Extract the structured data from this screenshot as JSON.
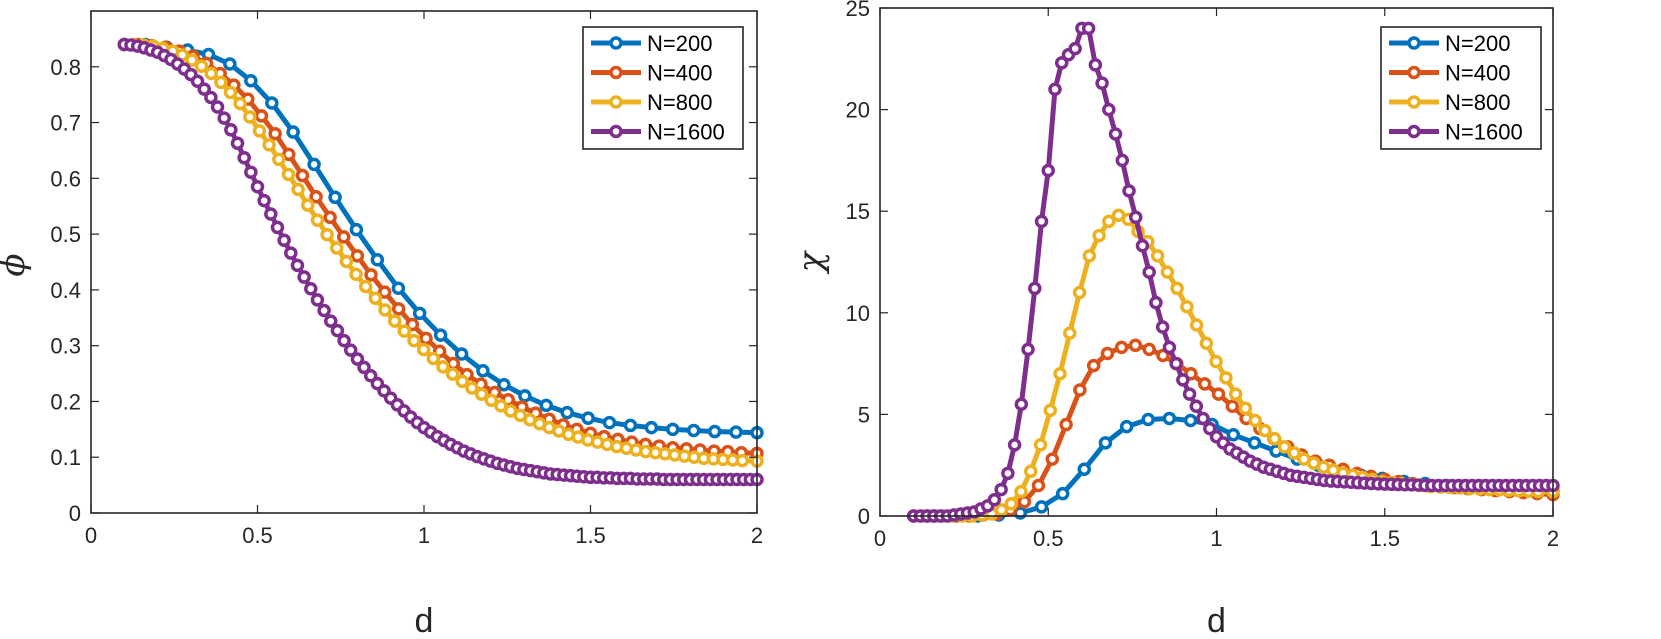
{
  "charts": [
    {
      "type": "line",
      "title": "",
      "xlabel": "d",
      "ylabel": "ϕ",
      "xlim": [
        0,
        2
      ],
      "ylim": [
        0,
        0.9
      ],
      "xticks": [
        0,
        0.5,
        1,
        1.5,
        2
      ],
      "xtick_labels": [
        "0",
        "0.5",
        "1",
        "1.5",
        "2"
      ],
      "yticks": [
        0,
        0.1,
        0.2,
        0.3,
        0.4,
        0.5,
        0.6,
        0.7,
        0.8
      ],
      "ytick_labels": [
        "0",
        "0.1",
        "0.2",
        "0.3",
        "0.4",
        "0.5",
        "0.6",
        "0.7",
        "0.8"
      ],
      "legend_position": "top-right",
      "series": [
        {
          "name": "N=200",
          "color": "#0072BD",
          "x": [
            0.1,
            0.163,
            0.227,
            0.29,
            0.353,
            0.417,
            0.48,
            0.543,
            0.607,
            0.67,
            0.733,
            0.797,
            0.86,
            0.923,
            0.987,
            1.05,
            1.113,
            1.177,
            1.24,
            1.303,
            1.367,
            1.43,
            1.493,
            1.557,
            1.62,
            1.683,
            1.747,
            1.81,
            1.873,
            1.937,
            2.0
          ],
          "y": [
            0.84,
            0.84,
            0.835,
            0.83,
            0.822,
            0.805,
            0.775,
            0.735,
            0.683,
            0.625,
            0.566,
            0.508,
            0.454,
            0.403,
            0.358,
            0.319,
            0.285,
            0.255,
            0.23,
            0.21,
            0.193,
            0.18,
            0.17,
            0.162,
            0.157,
            0.153,
            0.15,
            0.148,
            0.146,
            0.145,
            0.144
          ]
        },
        {
          "name": "N=400",
          "color": "#D95319",
          "x": [
            0.1,
            0.141,
            0.182,
            0.224,
            0.265,
            0.306,
            0.347,
            0.388,
            0.429,
            0.471,
            0.512,
            0.553,
            0.594,
            0.635,
            0.676,
            0.718,
            0.759,
            0.8,
            0.841,
            0.882,
            0.924,
            0.965,
            1.006,
            1.047,
            1.088,
            1.129,
            1.171,
            1.212,
            1.253,
            1.294,
            1.335,
            1.376,
            1.418,
            1.459,
            1.5,
            1.541,
            1.582,
            1.624,
            1.665,
            1.706,
            1.747,
            1.788,
            1.829,
            1.871,
            1.912,
            1.953,
            2.0
          ],
          "y": [
            0.84,
            0.84,
            0.838,
            0.835,
            0.828,
            0.819,
            0.806,
            0.788,
            0.767,
            0.742,
            0.712,
            0.68,
            0.643,
            0.605,
            0.567,
            0.53,
            0.495,
            0.461,
            0.427,
            0.396,
            0.366,
            0.338,
            0.313,
            0.29,
            0.268,
            0.248,
            0.231,
            0.216,
            0.203,
            0.19,
            0.179,
            0.168,
            0.158,
            0.15,
            0.143,
            0.137,
            0.132,
            0.127,
            0.123,
            0.12,
            0.117,
            0.115,
            0.113,
            0.111,
            0.11,
            0.108,
            0.107
          ]
        },
        {
          "name": "N=800",
          "color": "#EDB120",
          "x": [
            0.1,
            0.129,
            0.158,
            0.187,
            0.216,
            0.245,
            0.274,
            0.303,
            0.332,
            0.361,
            0.39,
            0.419,
            0.448,
            0.477,
            0.506,
            0.535,
            0.564,
            0.593,
            0.622,
            0.651,
            0.68,
            0.709,
            0.738,
            0.767,
            0.796,
            0.825,
            0.854,
            0.883,
            0.912,
            0.941,
            0.97,
            0.999,
            1.028,
            1.057,
            1.086,
            1.115,
            1.144,
            1.173,
            1.202,
            1.231,
            1.26,
            1.289,
            1.318,
            1.347,
            1.376,
            1.405,
            1.434,
            1.463,
            1.492,
            1.521,
            1.55,
            1.579,
            1.608,
            1.637,
            1.666,
            1.695,
            1.724,
            1.753,
            1.782,
            1.811,
            1.84,
            1.869,
            1.898,
            1.927,
            1.956,
            2.0
          ],
          "y": [
            0.84,
            0.84,
            0.839,
            0.837,
            0.833,
            0.828,
            0.821,
            0.812,
            0.801,
            0.788,
            0.772,
            0.754,
            0.734,
            0.71,
            0.685,
            0.66,
            0.634,
            0.607,
            0.58,
            0.552,
            0.525,
            0.499,
            0.475,
            0.451,
            0.428,
            0.406,
            0.385,
            0.364,
            0.344,
            0.326,
            0.309,
            0.293,
            0.277,
            0.262,
            0.249,
            0.236,
            0.224,
            0.213,
            0.202,
            0.192,
            0.183,
            0.175,
            0.167,
            0.16,
            0.153,
            0.147,
            0.141,
            0.136,
            0.131,
            0.127,
            0.123,
            0.119,
            0.116,
            0.113,
            0.11,
            0.108,
            0.106,
            0.104,
            0.102,
            0.1,
            0.098,
            0.097,
            0.096,
            0.095,
            0.094,
            0.093
          ]
        },
        {
          "name": "N=1600",
          "color": "#7E2F8E",
          "x": [
            0.1,
            0.12,
            0.14,
            0.16,
            0.18,
            0.2,
            0.22,
            0.24,
            0.26,
            0.28,
            0.3,
            0.32,
            0.34,
            0.36,
            0.38,
            0.4,
            0.42,
            0.44,
            0.46,
            0.48,
            0.5,
            0.52,
            0.54,
            0.56,
            0.58,
            0.6,
            0.62,
            0.64,
            0.66,
            0.68,
            0.7,
            0.72,
            0.74,
            0.76,
            0.78,
            0.8,
            0.82,
            0.84,
            0.86,
            0.88,
            0.9,
            0.92,
            0.94,
            0.96,
            0.98,
            1.0,
            1.02,
            1.04,
            1.06,
            1.08,
            1.1,
            1.12,
            1.14,
            1.16,
            1.18,
            1.2,
            1.22,
            1.24,
            1.26,
            1.28,
            1.3,
            1.32,
            1.34,
            1.36,
            1.38,
            1.4,
            1.42,
            1.44,
            1.46,
            1.48,
            1.5,
            1.52,
            1.54,
            1.56,
            1.58,
            1.6,
            1.62,
            1.64,
            1.66,
            1.68,
            1.7,
            1.72,
            1.74,
            1.76,
            1.78,
            1.8,
            1.82,
            1.84,
            1.86,
            1.88,
            1.9,
            1.92,
            1.94,
            1.96,
            1.98,
            2.0
          ],
          "y": [
            0.84,
            0.839,
            0.837,
            0.834,
            0.83,
            0.826,
            0.82,
            0.813,
            0.805,
            0.796,
            0.786,
            0.774,
            0.76,
            0.745,
            0.728,
            0.708,
            0.687,
            0.663,
            0.637,
            0.611,
            0.585,
            0.56,
            0.536,
            0.512,
            0.489,
            0.466,
            0.444,
            0.423,
            0.402,
            0.382,
            0.363,
            0.344,
            0.327,
            0.309,
            0.292,
            0.276,
            0.261,
            0.246,
            0.232,
            0.219,
            0.206,
            0.194,
            0.183,
            0.172,
            0.162,
            0.153,
            0.145,
            0.137,
            0.13,
            0.123,
            0.117,
            0.111,
            0.106,
            0.101,
            0.097,
            0.093,
            0.089,
            0.086,
            0.083,
            0.08,
            0.078,
            0.076,
            0.074,
            0.072,
            0.07,
            0.069,
            0.068,
            0.067,
            0.066,
            0.065,
            0.064,
            0.064,
            0.063,
            0.063,
            0.062,
            0.062,
            0.062,
            0.061,
            0.061,
            0.061,
            0.061,
            0.06,
            0.06,
            0.06,
            0.06,
            0.06,
            0.06,
            0.06,
            0.06,
            0.06,
            0.06,
            0.06,
            0.06,
            0.06,
            0.06,
            0.06
          ]
        }
      ]
    },
    {
      "type": "line",
      "title": "",
      "xlabel": "d",
      "ylabel": "χ",
      "xlim": [
        0,
        2
      ],
      "ylim": [
        0,
        25
      ],
      "xticks": [
        0,
        0.5,
        1,
        1.5,
        2
      ],
      "xtick_labels": [
        "0",
        "0.5",
        "1",
        "1.5",
        "2"
      ],
      "yticks": [
        0,
        5,
        10,
        15,
        20,
        25
      ],
      "ytick_labels": [
        "0",
        "5",
        "10",
        "15",
        "20",
        "25"
      ],
      "legend_position": "top-right",
      "series": [
        {
          "name": "N=200",
          "color": "#0072BD",
          "x": [
            0.1,
            0.163,
            0.227,
            0.29,
            0.353,
            0.417,
            0.48,
            0.543,
            0.607,
            0.67,
            0.733,
            0.797,
            0.86,
            0.923,
            0.987,
            1.05,
            1.113,
            1.177,
            1.24,
            1.303,
            1.367,
            1.43,
            1.493,
            1.557,
            1.62,
            1.683,
            1.747,
            1.81,
            1.873,
            1.937,
            2.0
          ],
          "y": [
            0.0,
            0.0,
            0.0,
            0.0,
            0.05,
            0.15,
            0.45,
            1.1,
            2.3,
            3.6,
            4.4,
            4.75,
            4.8,
            4.7,
            4.5,
            4.0,
            3.6,
            3.2,
            2.8,
            2.5,
            2.2,
            2.0,
            1.85,
            1.7,
            1.6,
            1.5,
            1.45,
            1.4,
            1.35,
            1.3,
            1.25
          ]
        },
        {
          "name": "N=400",
          "color": "#D95319",
          "x": [
            0.1,
            0.141,
            0.182,
            0.224,
            0.265,
            0.306,
            0.347,
            0.388,
            0.429,
            0.471,
            0.512,
            0.553,
            0.594,
            0.635,
            0.676,
            0.718,
            0.759,
            0.8,
            0.841,
            0.882,
            0.924,
            0.965,
            1.006,
            1.047,
            1.088,
            1.129,
            1.171,
            1.212,
            1.253,
            1.294,
            1.335,
            1.376,
            1.418,
            1.459,
            1.5,
            1.541,
            1.582,
            1.624,
            1.665,
            1.706,
            1.747,
            1.788,
            1.829,
            1.871,
            1.912,
            1.953,
            2.0
          ],
          "y": [
            0.0,
            0.0,
            0.0,
            0.0,
            0.0,
            0.05,
            0.1,
            0.3,
            0.7,
            1.5,
            2.8,
            4.5,
            6.2,
            7.4,
            8.0,
            8.3,
            8.4,
            8.2,
            7.9,
            7.5,
            7.0,
            6.5,
            6.0,
            5.4,
            4.8,
            4.3,
            3.8,
            3.4,
            3.0,
            2.7,
            2.5,
            2.3,
            2.1,
            1.95,
            1.8,
            1.7,
            1.6,
            1.5,
            1.45,
            1.4,
            1.35,
            1.3,
            1.25,
            1.2,
            1.15,
            1.1,
            1.05
          ]
        },
        {
          "name": "N=800",
          "color": "#EDB120",
          "x": [
            0.1,
            0.129,
            0.158,
            0.187,
            0.216,
            0.245,
            0.274,
            0.303,
            0.332,
            0.361,
            0.39,
            0.419,
            0.448,
            0.477,
            0.506,
            0.535,
            0.564,
            0.593,
            0.622,
            0.651,
            0.68,
            0.709,
            0.738,
            0.767,
            0.796,
            0.825,
            0.854,
            0.883,
            0.912,
            0.941,
            0.97,
            0.999,
            1.028,
            1.057,
            1.086,
            1.115,
            1.144,
            1.173,
            1.202,
            1.231,
            1.26,
            1.289,
            1.318,
            1.347,
            1.376,
            1.405,
            1.434,
            1.463,
            1.492,
            1.521,
            1.55,
            1.579,
            1.608,
            1.637,
            1.666,
            1.695,
            1.724,
            1.753,
            1.782,
            1.811,
            1.84,
            1.869,
            1.898,
            1.927,
            1.956,
            2.0
          ],
          "y": [
            0.0,
            0.0,
            0.0,
            0.0,
            0.0,
            0.0,
            0.0,
            0.05,
            0.1,
            0.3,
            0.6,
            1.2,
            2.2,
            3.5,
            5.2,
            7.0,
            9.0,
            11.0,
            12.8,
            13.8,
            14.5,
            14.8,
            14.6,
            14.0,
            13.5,
            12.8,
            12.0,
            11.2,
            10.3,
            9.4,
            8.5,
            7.6,
            6.8,
            6.0,
            5.3,
            4.7,
            4.2,
            3.8,
            3.4,
            3.1,
            2.8,
            2.6,
            2.4,
            2.25,
            2.1,
            2.0,
            1.9,
            1.8,
            1.7,
            1.65,
            1.6,
            1.55,
            1.5,
            1.45,
            1.42,
            1.4,
            1.38,
            1.35,
            1.33,
            1.3,
            1.28,
            1.26,
            1.24,
            1.22,
            1.2,
            1.2
          ]
        },
        {
          "name": "N=1600",
          "color": "#7E2F8E",
          "x": [
            0.1,
            0.12,
            0.14,
            0.16,
            0.18,
            0.2,
            0.22,
            0.24,
            0.26,
            0.28,
            0.3,
            0.32,
            0.34,
            0.36,
            0.38,
            0.4,
            0.42,
            0.44,
            0.46,
            0.48,
            0.5,
            0.52,
            0.54,
            0.56,
            0.58,
            0.6,
            0.62,
            0.64,
            0.66,
            0.68,
            0.7,
            0.72,
            0.74,
            0.76,
            0.78,
            0.8,
            0.82,
            0.84,
            0.86,
            0.88,
            0.9,
            0.92,
            0.94,
            0.96,
            0.98,
            1.0,
            1.02,
            1.04,
            1.06,
            1.08,
            1.1,
            1.12,
            1.14,
            1.16,
            1.18,
            1.2,
            1.22,
            1.24,
            1.26,
            1.28,
            1.3,
            1.32,
            1.34,
            1.36,
            1.38,
            1.4,
            1.42,
            1.44,
            1.46,
            1.48,
            1.5,
            1.52,
            1.54,
            1.56,
            1.58,
            1.6,
            1.62,
            1.64,
            1.66,
            1.68,
            1.7,
            1.72,
            1.74,
            1.76,
            1.78,
            1.8,
            1.82,
            1.84,
            1.86,
            1.88,
            1.9,
            1.92,
            1.94,
            1.96,
            1.98,
            2.0
          ],
          "y": [
            0.0,
            0.0,
            0.0,
            0.0,
            0.0,
            0.0,
            0.05,
            0.1,
            0.15,
            0.2,
            0.35,
            0.5,
            0.8,
            1.3,
            2.1,
            3.5,
            5.5,
            8.2,
            11.2,
            14.5,
            17.0,
            21.0,
            22.3,
            22.7,
            23.0,
            24.0,
            24.0,
            22.2,
            21.3,
            20.0,
            18.8,
            17.5,
            16.0,
            14.7,
            13.3,
            12.0,
            10.5,
            9.3,
            8.3,
            7.5,
            6.7,
            6.0,
            5.4,
            4.8,
            4.3,
            3.9,
            3.6,
            3.3,
            3.1,
            2.9,
            2.7,
            2.55,
            2.4,
            2.3,
            2.2,
            2.1,
            2.0,
            1.95,
            1.9,
            1.85,
            1.8,
            1.75,
            1.72,
            1.7,
            1.68,
            1.66,
            1.64,
            1.62,
            1.6,
            1.58,
            1.57,
            1.56,
            1.55,
            1.54,
            1.53,
            1.52,
            1.51,
            1.5,
            1.5,
            1.5,
            1.5,
            1.5,
            1.5,
            1.5,
            1.5,
            1.5,
            1.5,
            1.5,
            1.5,
            1.5,
            1.5,
            1.5,
            1.5,
            1.5,
            1.5,
            1.5
          ]
        }
      ]
    }
  ]
}
